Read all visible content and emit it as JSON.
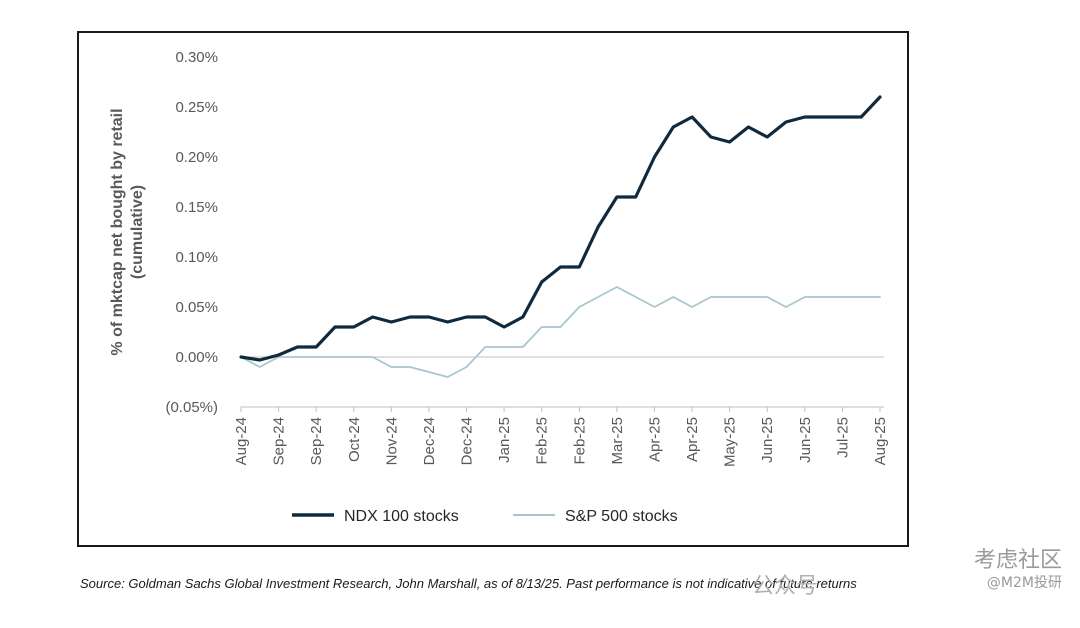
{
  "chart_data": {
    "type": "line",
    "ylabel": "% of mktcap net bought by retail (cumulative)",
    "ylabel_lines": [
      "% of mktcap net bought by retail",
      "(cumulative)"
    ],
    "ylim": [
      -0.0005,
      0.003
    ],
    "y_ticks": [
      {
        "value": 0.003,
        "label": "0.30%"
      },
      {
        "value": 0.0025,
        "label": "0.25%"
      },
      {
        "value": 0.002,
        "label": "0.20%"
      },
      {
        "value": 0.0015,
        "label": "0.15%"
      },
      {
        "value": 0.001,
        "label": "0.10%"
      },
      {
        "value": 0.0005,
        "label": "0.05%"
      },
      {
        "value": 0.0,
        "label": "0.00%"
      },
      {
        "value": -0.0005,
        "label": "(0.05%)"
      }
    ],
    "x_ticks": [
      "Aug-24",
      "Sep-24",
      "Sep-24",
      "Oct-24",
      "Nov-24",
      "Dec-24",
      "Dec-24",
      "Jan-25",
      "Feb-25",
      "Feb-25",
      "Mar-25",
      "Apr-25",
      "Apr-25",
      "May-25",
      "Jun-25",
      "Jun-25",
      "Jul-25",
      "Aug-25"
    ],
    "x": [
      0,
      0.5,
      1,
      1.5,
      2,
      2.5,
      3,
      3.5,
      4,
      4.5,
      5,
      5.5,
      6,
      6.5,
      7,
      7.5,
      8,
      8.5,
      9,
      9.5,
      10,
      10.5,
      11,
      11.5,
      12,
      12.5,
      13,
      13.5,
      14,
      14.5,
      15,
      15.5,
      16,
      16.5,
      17
    ],
    "series": [
      {
        "name": "NDX 100 stocks",
        "color": "#0f2a3f",
        "values": [
          0.0,
          -3e-05,
          2e-05,
          0.0001,
          0.0001,
          0.0003,
          0.0003,
          0.0004,
          0.00035,
          0.0004,
          0.0004,
          0.00035,
          0.0004,
          0.0004,
          0.0003,
          0.0004,
          0.00075,
          0.0009,
          0.0009,
          0.0013,
          0.0016,
          0.0016,
          0.002,
          0.0023,
          0.0024,
          0.0022,
          0.00215,
          0.0023,
          0.0022,
          0.00235,
          0.0024,
          0.0024,
          0.0024,
          0.0024,
          0.0026
        ]
      },
      {
        "name": "S&P 500 stocks",
        "color": "#a9c6cf",
        "values": [
          0.0,
          -0.0001,
          0.0,
          0.0,
          0.0,
          0.0,
          0.0,
          0.0,
          -0.0001,
          -0.0001,
          -0.00015,
          -0.0002,
          -0.0001,
          0.0001,
          0.0001,
          0.0001,
          0.0003,
          0.0003,
          0.0005,
          0.0006,
          0.0007,
          0.0006,
          0.0005,
          0.0006,
          0.0005,
          0.0006,
          0.0006,
          0.0006,
          0.0006,
          0.0005,
          0.0006,
          0.0006,
          0.0006,
          0.0006,
          0.0006
        ]
      }
    ],
    "legend_position": "bottom",
    "grid": false
  },
  "source_note": "Source: Goldman Sachs Global Investment Research, John Marshall,  as of 8/13/25. Past performance is not indicative of future returns",
  "watermark": {
    "main": "考虑社区",
    "sub": "@M2M投研",
    "mid": "公众号"
  }
}
